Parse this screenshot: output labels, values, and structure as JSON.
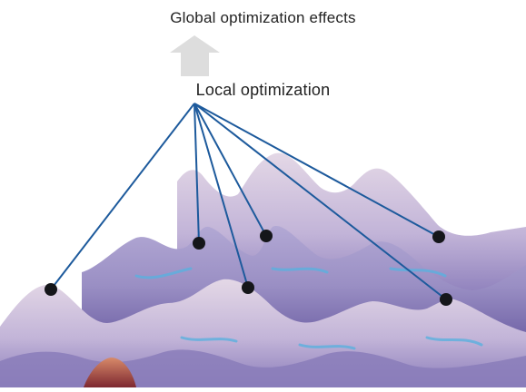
{
  "diagram": {
    "title": "Global optimization effects",
    "subtitle": "Local optimization",
    "colors": {
      "arrow": "#dddddd",
      "line": "#1d5a9c",
      "dot": "#15161a",
      "surface_light": "#e6d8e8",
      "surface_mid": "#a9a0cc",
      "surface_dark": "#6d60a6",
      "surface_edge": "#5ab0df",
      "surface_warm": "#9a3b3f"
    },
    "nodes": [
      {
        "id": "peak-1"
      },
      {
        "id": "peak-2"
      },
      {
        "id": "peak-3"
      },
      {
        "id": "peak-4"
      },
      {
        "id": "peak-5"
      },
      {
        "id": "peak-6"
      }
    ]
  }
}
